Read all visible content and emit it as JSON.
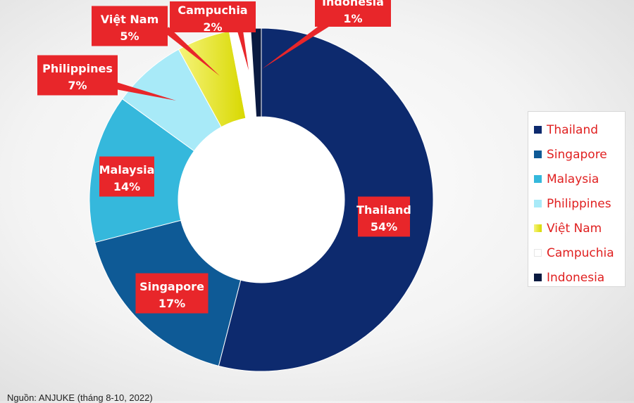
{
  "chart_data": {
    "type": "pie",
    "subtype": "donut",
    "categories": [
      "Thailand",
      "Singapore",
      "Malaysia",
      "Philippines",
      "Việt Nam",
      "Campuchia",
      "Indonesia"
    ],
    "values": [
      54,
      17,
      14,
      7,
      5,
      2,
      1
    ],
    "value_labels": [
      "54%",
      "17%",
      "14%",
      "7%",
      "5%",
      "2%",
      "1%"
    ],
    "colors": [
      "#0d2a6e",
      "#0e5a96",
      "#35b8dc",
      "#a8eaf8",
      "#e8e800",
      "#ffffff",
      "#0a1a40"
    ],
    "legend_position": "right",
    "label_style": {
      "background": "#e8262a",
      "text": "#ffffff"
    }
  },
  "source_note": "Nguồn: ANJUKE (tháng 8-10, 2022)"
}
